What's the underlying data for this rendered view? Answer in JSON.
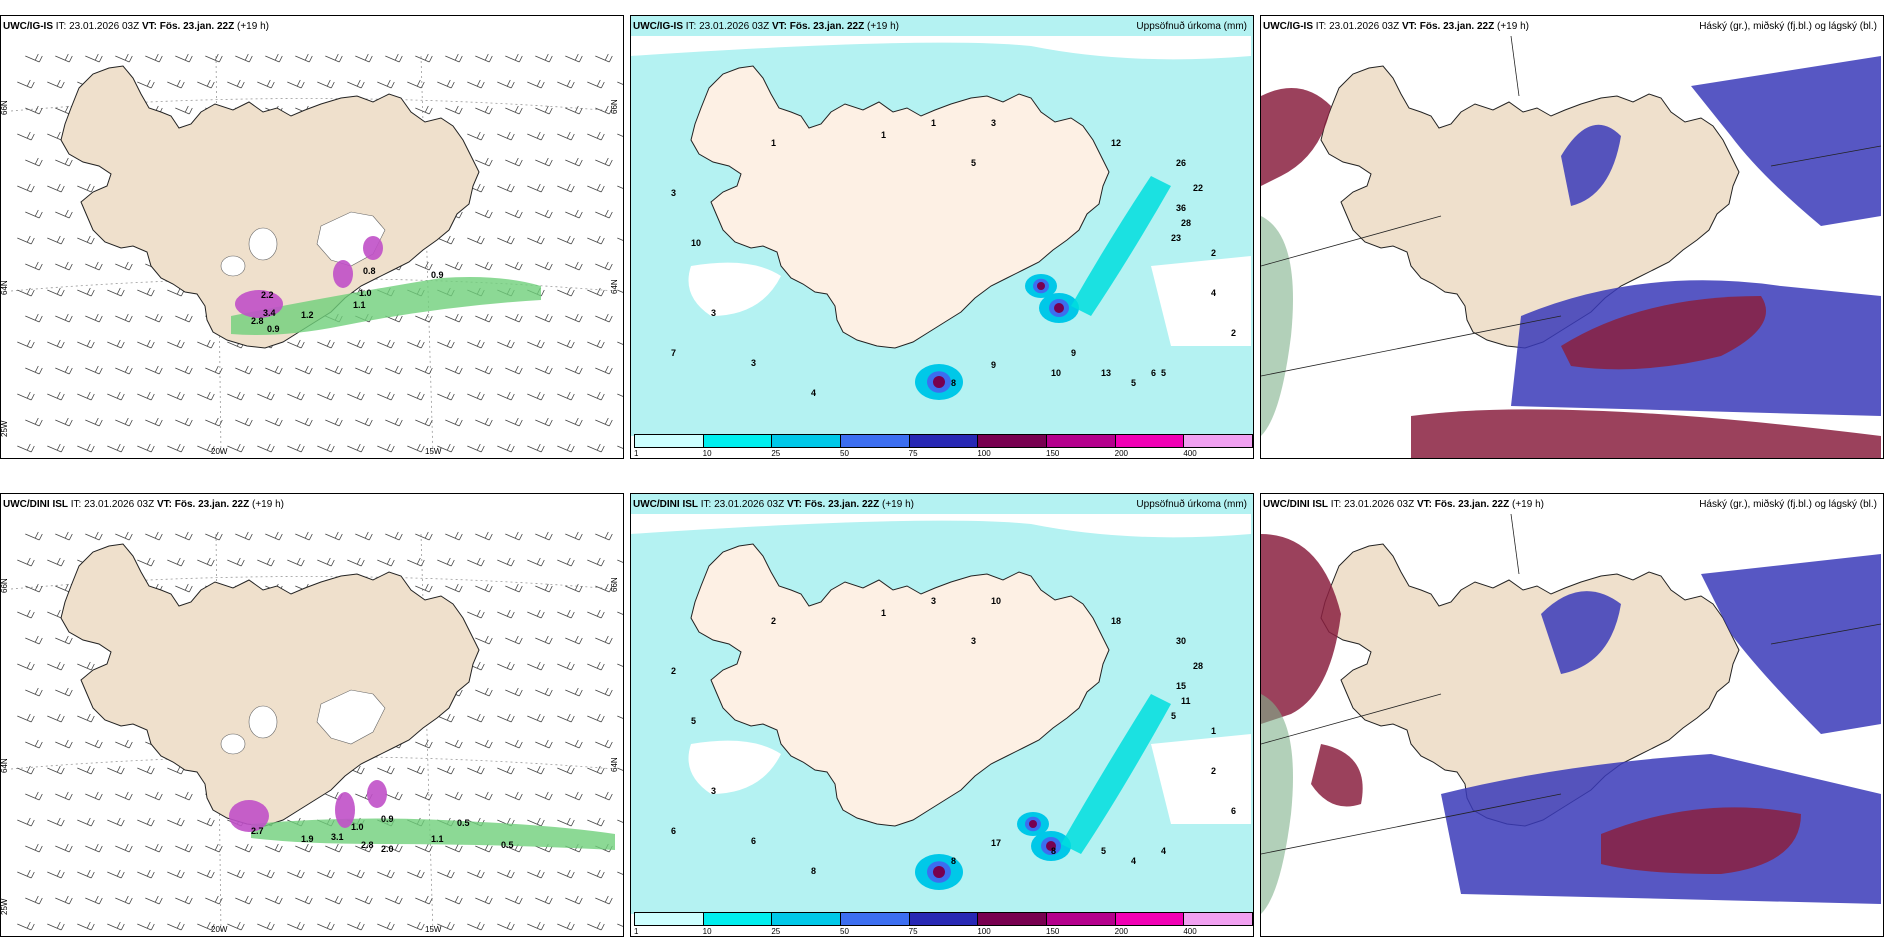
{
  "panels": [
    {
      "model": "UWC/IG-IS",
      "it": "IT: 23.01.2026 03Z",
      "vt": "VT: Fös. 23.jan. 22Z",
      "lead": "(+19 h)",
      "right": ""
    },
    {
      "model": "UWC/IG-IS",
      "it": "IT: 23.01.2026 03Z",
      "vt": "VT: Fös. 23.jan. 22Z",
      "lead": "(+19 h)",
      "right": "Uppsöfnuð úrkoma (mm)"
    },
    {
      "model": "UWC/IG-IS",
      "it": "IT: 23.01.2026 03Z",
      "vt": "VT: Fös. 23.jan. 22Z",
      "lead": "(+19 h)",
      "right": "Háský (gr.), miðský (fj.bl.) og lágský (bl.)"
    },
    {
      "model": "UWC/DINI ISL",
      "it": "IT: 23.01.2026 03Z",
      "vt": "VT: Fös. 23.jan. 22Z",
      "lead": "(+19 h)",
      "right": ""
    },
    {
      "model": "UWC/DINI ISL",
      "it": "IT: 23.01.2026 03Z",
      "vt": "VT: Fös. 23.jan. 22Z",
      "lead": "(+19 h)",
      "right": "Uppsöfnuð úrkoma (mm)"
    },
    {
      "model": "UWC/DINI ISL",
      "it": "IT: 23.01.2026 03Z",
      "vt": "VT: Fös. 23.jan. 22Z",
      "lead": "(+19 h)",
      "right": "Háský (gr.), miðský (fj.bl.) og lágský (bl.)"
    }
  ],
  "axes": {
    "lon": [
      "20W",
      "15W"
    ],
    "lat": [
      "66N",
      "64N",
      "25W"
    ],
    "lat_right": [
      "66N",
      "64N"
    ]
  },
  "colorbar": {
    "ticks": [
      "1",
      "10",
      "25",
      "50",
      "75",
      "100",
      "150",
      "200",
      "400"
    ],
    "colors": [
      "#ccffff",
      "#00eeee",
      "#00c8e8",
      "#3c6ef0",
      "#2828b4",
      "#780050",
      "#b4008c",
      "#f000b4",
      "#f0a0f0"
    ]
  },
  "precip_labels_top": [
    "3",
    "1",
    "1",
    "1",
    "5",
    "3",
    "12",
    "26",
    "22",
    "36",
    "28",
    "23",
    "2",
    "10",
    "3",
    "7",
    "3",
    "4",
    "8",
    "9",
    "10",
    "13",
    "5",
    "5",
    "2",
    "4",
    "6",
    "9"
  ],
  "precip_labels_bot": [
    "2",
    "2",
    "1",
    "3",
    "3",
    "10",
    "18",
    "30",
    "28",
    "15",
    "11",
    "5",
    "1",
    "5",
    "3",
    "6",
    "6",
    "8",
    "8",
    "17",
    "8",
    "5",
    "4",
    "4",
    "6",
    "2"
  ],
  "wind_labels_top": [
    "2.2",
    "3.4",
    "2.8",
    "0.9",
    "0.8",
    "1.1",
    "1.2",
    "1.0",
    "0.9"
  ],
  "wind_labels_bot": [
    "2.7",
    "1.9",
    "3.1",
    "2.8",
    "2.0",
    "0.5",
    "0.9",
    "1.0",
    "1.1",
    "0.5"
  ],
  "colors": {
    "land": "#efe0cc",
    "sea_precip": "#b4f2f2",
    "wind_band": "#6fd07a",
    "magenta": "#c050c8",
    "low_cloud": "#3a3ab8",
    "mid_cloud": "#8a2040",
    "high_cloud": "#cfcfcf"
  }
}
